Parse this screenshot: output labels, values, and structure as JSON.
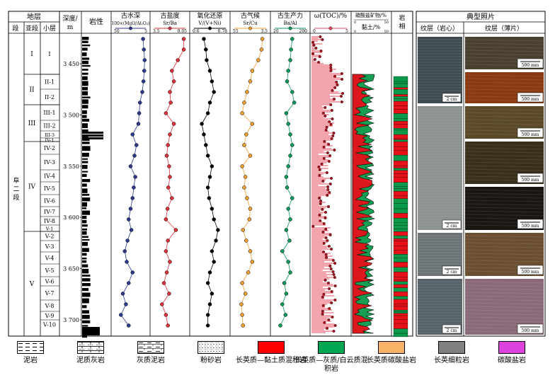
{
  "header": {
    "strata": "地层",
    "section": "段",
    "subsection": "亚段",
    "sublayer": "小层",
    "depth": "深度/m",
    "lithology": "岩性",
    "paleo_depth": "古水深",
    "paleo_depth_unit": "100×(MgO/Al₂O₃)",
    "paleo_salinity": "古盐度",
    "paleo_salinity_unit": "Sr/Ba",
    "redox": "氧化还原",
    "redox_unit": "V/(V+Ni)",
    "paleo_climate": "古气候",
    "paleo_climate_unit": "Sr/Cu",
    "paleo_productivity": "古生产力",
    "paleo_productivity_unit": "Ba/Al",
    "toc": "ω(TOC)/%",
    "carb": "碳酸盐矿物/%",
    "clay": "黏土/%",
    "facies": "岩相",
    "photos": "典型照片",
    "core": "纹层（岩心）",
    "thin": "纹层（薄片）"
  },
  "section_name": "阜二段",
  "subsections": [
    "I",
    "II",
    "III",
    "IV",
    "V"
  ],
  "sublayers": [
    "I",
    "II-1",
    "II-2",
    "III-1",
    "III-2",
    "III-3",
    "IV-1",
    "IV-2",
    "IV-3",
    "IV-4",
    "IV-5",
    "IV-6",
    "IV-7",
    "IV-8",
    "V-1",
    "V-2",
    "V-3",
    "V-4",
    "V-5",
    "V-6",
    "V-7",
    "V-8",
    "V-9",
    "V-10"
  ],
  "depth_ticks": [
    "3 450",
    "3 500",
    "3 550",
    "3 600",
    "3 650",
    "3 700"
  ],
  "scales": {
    "paleo_depth": [
      "50",
      "5"
    ],
    "paleo_salinity": [
      "3.5",
      "0.05"
    ],
    "redox": [
      "0.6",
      "0.78"
    ],
    "paleo_climate": [
      "55",
      "3.5"
    ],
    "paleo_productivity": [
      "20",
      "200"
    ],
    "toc": [
      "0",
      "5"
    ],
    "carb": [
      "0",
      "50"
    ],
    "clay": [
      "0",
      "50"
    ]
  },
  "scale_bars": {
    "core": "2 cm",
    "thin": "500 mm"
  },
  "legend": [
    {
      "label": "泥岩",
      "kind": "mudstone"
    },
    {
      "label": "泥质灰岩",
      "kind": "argillaceous-limestone"
    },
    {
      "label": "灰质泥岩",
      "kind": "calcareous-mudstone"
    },
    {
      "label": "粉砂岩",
      "kind": "siltstone"
    },
    {
      "label": "长英质—黏土质混积岩",
      "kind": "felsic-clay",
      "color": "#ff0000"
    },
    {
      "label": "长英质—灰质/白云质混积岩",
      "kind": "felsic-lime",
      "color": "#00a651"
    },
    {
      "label": "长英质碳酸盐岩",
      "kind": "felsic-carbonate",
      "color": "#f7b267"
    },
    {
      "label": "长英细粒岩",
      "kind": "felsic-fine",
      "color": "#808080"
    },
    {
      "label": "碳酸盐岩",
      "kind": "carbonate",
      "color": "#dd44dd"
    }
  ],
  "colors": {
    "paleo_depth": "#2b3a8f",
    "paleo_salinity": "#e0303a",
    "redox": "#000000",
    "paleo_climate": "#f0a030",
    "paleo_productivity": "#0a9a5a",
    "toc_fill": "#e84a5a",
    "carb": "#e8111a",
    "clay": "#0a9a4a"
  }
}
